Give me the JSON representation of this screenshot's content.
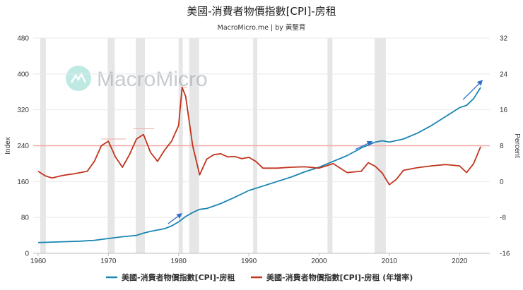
{
  "chart_data": {
    "type": "line",
    "title": "美國-消費者物價指數[CPI]-房租",
    "subtitle": "MacroMicro.me | by 黃聖育",
    "watermark": "MacroMicro",
    "y_left": {
      "label": "Index",
      "lim": [
        0,
        480
      ],
      "ticks": [
        0,
        80,
        160,
        240,
        320,
        400,
        480
      ]
    },
    "y_right": {
      "label": "Percent",
      "lim": [
        -16,
        32
      ],
      "ticks": [
        -16,
        -8,
        0,
        8,
        16,
        24,
        32
      ]
    },
    "x": {
      "lim": [
        1959.3,
        2024.3
      ],
      "ticks": [
        1960,
        1970,
        1980,
        1990,
        2000,
        2010,
        2020
      ]
    },
    "recessions": [
      [
        1960.3,
        1961.1
      ],
      [
        1969.9,
        1970.9
      ],
      [
        1973.9,
        1975.2
      ],
      [
        1980.0,
        1980.6
      ],
      [
        1981.5,
        1982.9
      ],
      [
        1990.6,
        1991.2
      ],
      [
        2001.2,
        2001.9
      ],
      [
        2007.9,
        2009.5
      ]
    ],
    "reference_line_right": 8,
    "peak_markers": [
      [
        1969.0,
        1972.5,
        9.5
      ],
      [
        1973.5,
        1976.5,
        11.8
      ],
      [
        1980.3,
        1981.2,
        21.0
      ]
    ],
    "series": [
      {
        "name": "美國-消費者物價指數[CPI]-房租",
        "axis": "left",
        "color": "#1a86b3",
        "x": [
          1960,
          1962,
          1964,
          1966,
          1968,
          1970,
          1972,
          1974,
          1975,
          1976,
          1977,
          1978,
          1979,
          1980,
          1981,
          1982,
          1983,
          1984,
          1986,
          1988,
          1990,
          1992,
          1994,
          1996,
          1998,
          2000,
          2002,
          2004,
          2006,
          2008,
          2009,
          2010,
          2012,
          2014,
          2016,
          2018,
          2020,
          2021,
          2022,
          2023
        ],
        "values": [
          24,
          25,
          26,
          27,
          29,
          33,
          37,
          40,
          45,
          49,
          52,
          55,
          61,
          70,
          82,
          91,
          98,
          100,
          111,
          125,
          140,
          150,
          160,
          170,
          182,
          192,
          205,
          218,
          235,
          248,
          251,
          248,
          255,
          268,
          285,
          305,
          325,
          330,
          345,
          370
        ]
      },
      {
        "name": "美國-消費者物價指數[CPI]-房租 (年增率)",
        "axis": "right",
        "color": "#c0341d",
        "x": [
          1960,
          1961,
          1962,
          1963,
          1964,
          1965,
          1966,
          1967,
          1968,
          1969,
          1970,
          1971,
          1972,
          1973,
          1974,
          1975,
          1976,
          1977,
          1978,
          1979,
          1980,
          1980.5,
          1981,
          1982,
          1983,
          1984,
          1985,
          1986,
          1987,
          1988,
          1989,
          1990,
          1991,
          1992,
          1993,
          1994,
          1996,
          1998,
          2000,
          2002,
          2004,
          2006,
          2007,
          2008,
          2009,
          2010,
          2011,
          2012,
          2014,
          2016,
          2018,
          2020,
          2021,
          2022,
          2023
        ],
        "values": [
          2.3,
          1.3,
          0.8,
          1.2,
          1.5,
          1.7,
          2.0,
          2.3,
          4.5,
          8.0,
          9.0,
          5.5,
          3.2,
          6.0,
          9.5,
          10.5,
          6.5,
          4.5,
          7.0,
          9.0,
          12.5,
          21.0,
          19.0,
          8.0,
          1.5,
          5.0,
          6.0,
          6.2,
          5.5,
          5.6,
          5.1,
          5.4,
          4.5,
          3.0,
          3.0,
          3.0,
          3.2,
          3.3,
          3.0,
          4.0,
          2.0,
          2.3,
          4.2,
          3.4,
          1.9,
          -0.7,
          0.5,
          2.5,
          3.1,
          3.5,
          3.8,
          3.5,
          2.0,
          4.0,
          7.8
        ]
      }
    ],
    "trend_arrows": [
      {
        "axis": "left",
        "from": [
          1978.5,
          66
        ],
        "to": [
          1980.4,
          88
        ]
      },
      {
        "axis": "left",
        "from": [
          2005.2,
          232
        ],
        "to": [
          2007.5,
          249
        ]
      },
      {
        "axis": "left",
        "from": [
          2020.5,
          343
        ],
        "to": [
          2023.2,
          385
        ]
      }
    ]
  }
}
